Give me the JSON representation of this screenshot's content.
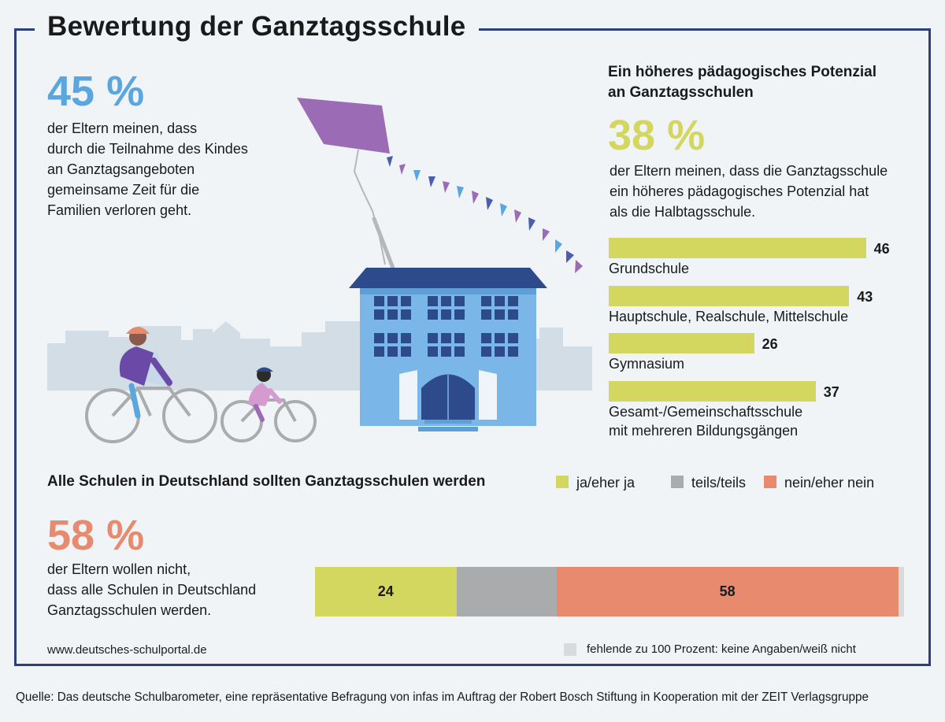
{
  "title": "Bewertung der Ganztagsschule",
  "left_stat": {
    "value": "45 %",
    "lines": [
      "der Eltern meinen, dass",
      "durch die Teilnahme des Kindes",
      "an Ganztagsangeboten",
      "gemeinsame Zeit für die",
      "Familien verloren geht."
    ]
  },
  "right_section": {
    "heading_lines": [
      "Ein höheres pädagogisches Potenzial",
      "an Ganztagsschulen"
    ],
    "value": "38 %",
    "lines": [
      "der Eltern meinen, dass die Ganztagsschule",
      "ein höheres pädagogisches Potenzial hat",
      "als die Halbtagsschule."
    ]
  },
  "chart_data": [
    {
      "type": "bar",
      "orientation": "horizontal",
      "title": "Ein höheres pädagogisches Potenzial an Ganztagsschulen",
      "categories": [
        "Grundschule",
        "Hauptschule, Realschule, Mittelschule",
        "Gymnasium",
        "Gesamt-/Gemeinschaftsschule mit mehreren Bildungsgängen"
      ],
      "category_lines": [
        [
          "Grundschule"
        ],
        [
          "Hauptschule, Realschule, Mittelschule"
        ],
        [
          "Gymnasium"
        ],
        [
          "Gesamt-/Gemeinschaftsschule",
          "mit mehreren Bildungsgängen"
        ]
      ],
      "values": [
        46,
        43,
        26,
        37
      ],
      "value_labels": [
        "46",
        "43",
        "26",
        "37"
      ],
      "unit": "%",
      "color": "#d4d75f"
    },
    {
      "type": "bar",
      "orientation": "horizontal",
      "stacked": true,
      "title": "Alle Schulen in Deutschland sollten Ganztagsschulen werden",
      "series": [
        {
          "name": "ja/eher ja",
          "value": 24,
          "label": "24",
          "color": "#d4d75f"
        },
        {
          "name": "teils/teils",
          "value": 17,
          "label": "",
          "color": "#a9abad"
        },
        {
          "name": "nein/eher nein",
          "value": 58,
          "label": "58",
          "color": "#e88a6d"
        },
        {
          "name": "fehlende zu 100 Prozent",
          "value": 1,
          "label": "",
          "color": "#d8dadc"
        }
      ],
      "total": 100
    }
  ],
  "bottom_section": {
    "heading": "Alle Schulen in Deutschland sollten Ganztagsschulen werden",
    "legend": [
      "ja/eher ja",
      "teils/teils",
      "nein/eher nein"
    ],
    "value": "58 %",
    "lines": [
      "der Eltern wollen nicht,",
      "dass alle Schulen in Deutschland",
      "Ganztagsschulen werden."
    ]
  },
  "footnote_missing": "fehlende zu 100 Prozent: keine Angaben/weiß nicht",
  "website": "www.deutsches-schulportal.de",
  "source": "Quelle: Das deutsche Schulbarometer, eine repräsentative Befragung von infas im Auftrag der Robert Bosch Stiftung in Kooperation mit der ZEIT Verlagsgruppe",
  "colors": {
    "frame": "#2b3f7c",
    "blue_pct": "#5aa7e0",
    "yellow": "#d4d75f",
    "grey": "#a9abad",
    "orange": "#e88a6d",
    "missing": "#d8dadc"
  }
}
